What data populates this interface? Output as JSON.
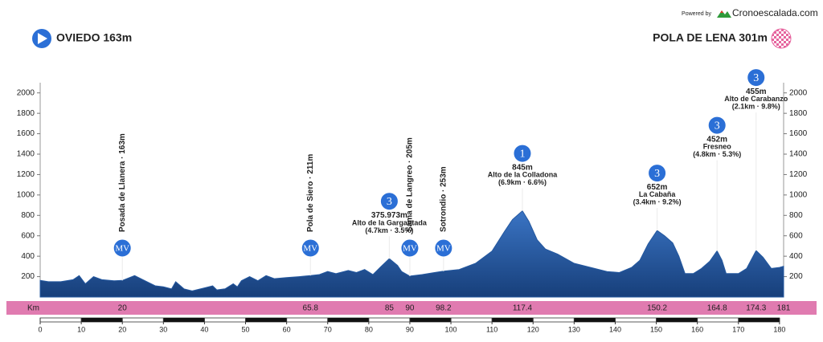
{
  "chart_data": {
    "type": "area",
    "start_label": "OVIEDO 163m",
    "finish_label": "POLA DE LENA 301m",
    "credit": "Powered by",
    "brand": "Cronoescalada.com",
    "km_label": "Km",
    "color": "#24589f",
    "xlim": [
      0,
      181
    ],
    "ylim": [
      0,
      2100
    ],
    "xticks": [
      0,
      10,
      20,
      30,
      40,
      50,
      60,
      70,
      80,
      90,
      100,
      110,
      120,
      130,
      140,
      150,
      160,
      170,
      180
    ],
    "yticks": [
      200,
      400,
      600,
      800,
      1000,
      1200,
      1400,
      1600,
      1800,
      2000
    ],
    "profile": {
      "km": [
        0,
        2,
        5,
        8,
        9.5,
        11,
        13,
        15,
        18,
        20,
        23,
        26,
        28,
        30,
        32,
        33,
        35,
        37,
        40,
        42,
        43,
        45,
        47,
        48,
        49,
        51,
        53,
        55,
        57,
        60,
        63,
        65.8,
        68,
        70,
        72,
        75,
        77,
        79,
        81,
        83,
        85,
        87,
        88,
        90,
        93,
        96,
        98.2,
        102,
        106,
        110,
        113,
        115,
        117.4,
        119,
        121,
        123,
        126,
        130,
        134,
        138,
        141,
        144,
        146,
        148,
        150.2,
        152,
        154,
        155.5,
        157,
        159,
        161,
        163,
        164.8,
        166,
        167,
        170,
        172,
        174.3,
        176,
        178,
        180,
        181
      ],
      "elevation": [
        163,
        150,
        150,
        170,
        210,
        130,
        200,
        170,
        160,
        163,
        210,
        150,
        110,
        100,
        80,
        150,
        80,
        60,
        90,
        110,
        70,
        80,
        130,
        100,
        160,
        200,
        160,
        210,
        180,
        190,
        200,
        211,
        220,
        250,
        230,
        260,
        240,
        270,
        220,
        300,
        376,
        310,
        250,
        205,
        220,
        240,
        253,
        270,
        330,
        450,
        640,
        760,
        845,
        740,
        560,
        470,
        420,
        330,
        290,
        250,
        240,
        290,
        360,
        520,
        652,
        600,
        530,
        400,
        230,
        230,
        280,
        350,
        452,
        360,
        230,
        230,
        280,
        455,
        390,
        280,
        290,
        301
      ]
    },
    "markers": [
      {
        "km": 20,
        "badge": "MV",
        "label": "Posada de Llanera · 163m"
      },
      {
        "km": 65.8,
        "badge": "MV",
        "label": "Pola de Siero · 211m"
      },
      {
        "km": 85,
        "badge": "3",
        "lines": [
          "375.973m",
          "Alto de la Gargantada",
          "(4.7km · 3.5%)"
        ]
      },
      {
        "km": 90,
        "badge": "MV",
        "label": "Sama de Langreo · 205m"
      },
      {
        "km": 98.2,
        "badge": "MV",
        "label": "Sotrondio · 253m"
      },
      {
        "km": 117.4,
        "badge": "1",
        "lines": [
          "845m",
          "Alto de la Colladona",
          "(6.9km · 6.6%)"
        ]
      },
      {
        "km": 150.2,
        "badge": "3",
        "lines": [
          "652m",
          "La Cabaña",
          "(3.4km · 9.2%)"
        ]
      },
      {
        "km": 164.8,
        "badge": "3",
        "lines": [
          "452m",
          "Fresneo",
          "(4.8km · 5.3%)"
        ]
      },
      {
        "km": 174.3,
        "badge": "3",
        "lines": [
          "455m",
          "Alto de Carabanzo",
          "(2.1km · 9.8%)"
        ]
      },
      {
        "km": 181
      }
    ]
  }
}
